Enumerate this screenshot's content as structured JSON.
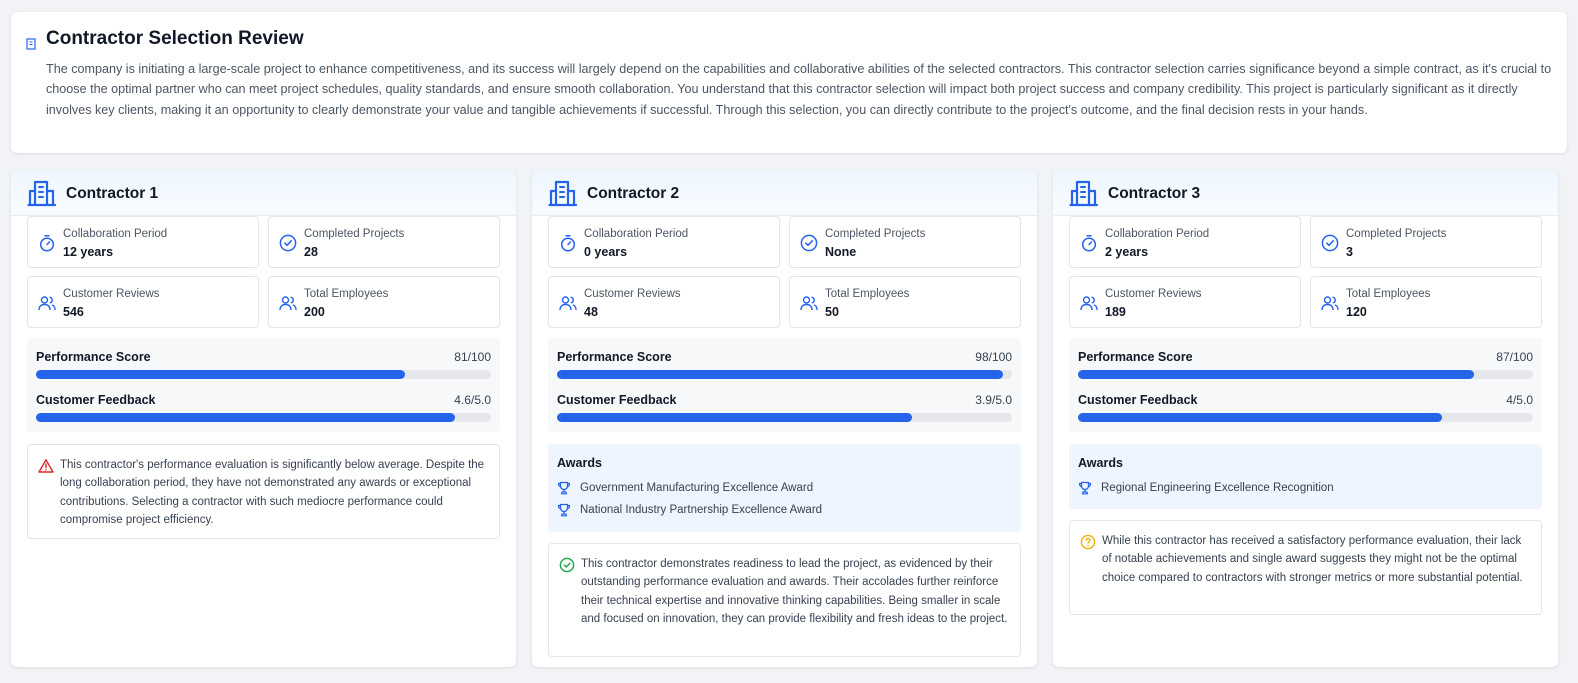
{
  "header": {
    "title": "Contractor Selection Review",
    "description": "The company is initiating a large-scale project to enhance competitiveness, and its success will largely depend on the capabilities and collaborative abilities of the selected contractors. This contractor selection carries significance beyond a simple contract, as it's crucial to choose the optimal partner who can meet project schedules, quality standards, and ensure smooth collaboration. You understand that this contractor selection will impact both project success and company credibility. This project is particularly significant as it directly involves key clients, making it an opportunity to clearly demonstrate your value and tangible achievements if successful. Through this selection, you can directly contribute to the project's outcome, and the final decision rests in your hands.",
    "icon": "building-icon"
  },
  "colors": {
    "accent": "#2563eb",
    "warning": "#dc2626",
    "success": "#16a34a",
    "caution": "#eab308"
  },
  "labels": {
    "collaboration_period": "Collaboration Period",
    "completed_projects": "Completed Projects",
    "customer_reviews": "Customer Reviews",
    "total_employees": "Total Employees",
    "performance_score": "Performance Score",
    "customer_feedback": "Customer Feedback",
    "awards": "Awards"
  },
  "contractors": [
    {
      "name": "Contractor 1",
      "collaboration_period": "12 years",
      "completed_projects": "28",
      "customer_reviews": "546",
      "total_employees": "200",
      "performance_score_text": "81/100",
      "performance_score": 81,
      "customer_feedback_text": "4.6/5.0",
      "customer_feedback": 4.6,
      "awards": [],
      "note_type": "warning",
      "note_icon": "alert-triangle-icon",
      "note": "This contractor's performance evaluation is significantly below average. Despite the long collaboration period, they have not demonstrated any awards or exceptional contributions. Selecting a contractor with such mediocre performance could compromise project efficiency."
    },
    {
      "name": "Contractor 2",
      "collaboration_period": "0 years",
      "completed_projects": "None",
      "customer_reviews": "48",
      "total_employees": "50",
      "performance_score_text": "98/100",
      "performance_score": 98,
      "customer_feedback_text": "3.9/5.0",
      "customer_feedback": 3.9,
      "awards": [
        "Government Manufacturing Excellence Award",
        "National Industry Partnership Excellence Award"
      ],
      "note_type": "success",
      "note_icon": "check-circle-icon",
      "note": "This contractor demonstrates readiness to lead the project, as evidenced by their outstanding performance evaluation and awards. Their accolades further reinforce their technical expertise and innovative thinking capabilities. Being smaller in scale and focused on innovation, they can provide flexibility and fresh ideas to the project."
    },
    {
      "name": "Contractor 3",
      "collaboration_period": "2 years",
      "completed_projects": "3",
      "customer_reviews": "189",
      "total_employees": "120",
      "performance_score_text": "87/100",
      "performance_score": 87,
      "customer_feedback_text": "4/5.0",
      "customer_feedback": 4.0,
      "awards": [
        "Regional Engineering Excellence Recognition"
      ],
      "note_type": "caution",
      "note_icon": "help-circle-icon",
      "note": "While this contractor has received a satisfactory performance evaluation, their lack of notable achievements and single award suggests they might not be the optimal choice compared to contractors with stronger metrics or more substantial potential."
    }
  ]
}
